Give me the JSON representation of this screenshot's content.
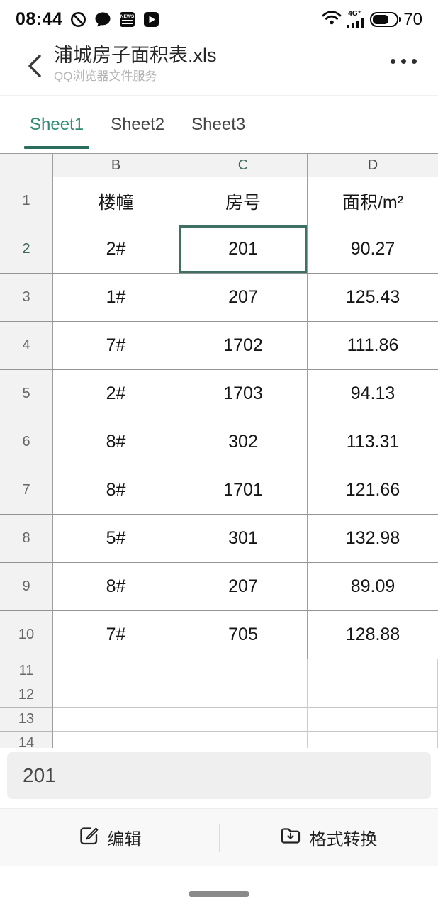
{
  "status_bar": {
    "time": "08:44",
    "left_icons": [
      "do-not-disturb-icon",
      "chat-bubble-icon",
      "news-app-icon",
      "video-app-icon"
    ],
    "network_label": "4G⁺",
    "battery_percent": "70"
  },
  "header": {
    "title": "浦城房子面积表.xls",
    "subtitle": "QQ浏览器文件服务"
  },
  "tabs": [
    {
      "label": "Sheet1",
      "active": true
    },
    {
      "label": "Sheet2",
      "active": false
    },
    {
      "label": "Sheet3",
      "active": false
    }
  ],
  "spreadsheet": {
    "columns": [
      "B",
      "C",
      "D"
    ],
    "selection": {
      "row": "2",
      "column": "C"
    },
    "rows": [
      {
        "num": "1",
        "cells": [
          "楼幢",
          "房号",
          "面积/m²"
        ]
      },
      {
        "num": "2",
        "cells": [
          "2#",
          "201",
          "90.27"
        ]
      },
      {
        "num": "3",
        "cells": [
          "1#",
          "207",
          "125.43"
        ]
      },
      {
        "num": "4",
        "cells": [
          "7#",
          "1702",
          "111.86"
        ]
      },
      {
        "num": "5",
        "cells": [
          "2#",
          "1703",
          "94.13"
        ]
      },
      {
        "num": "6",
        "cells": [
          "8#",
          "302",
          "113.31"
        ]
      },
      {
        "num": "7",
        "cells": [
          "8#",
          "1701",
          "121.66"
        ]
      },
      {
        "num": "8",
        "cells": [
          "5#",
          "301",
          "132.98"
        ]
      },
      {
        "num": "9",
        "cells": [
          "8#",
          "207",
          "89.09"
        ]
      },
      {
        "num": "10",
        "cells": [
          "7#",
          "705",
          "128.88"
        ]
      },
      {
        "num": "11",
        "cells": [
          "",
          "",
          ""
        ]
      },
      {
        "num": "12",
        "cells": [
          "",
          "",
          ""
        ]
      },
      {
        "num": "13",
        "cells": [
          "",
          "",
          ""
        ]
      },
      {
        "num": "14",
        "cells": [
          "",
          "",
          ""
        ]
      }
    ]
  },
  "cell_value_bar": {
    "value": "201"
  },
  "toolbar": {
    "edit_label": "编辑",
    "convert_label": "格式转换"
  },
  "colors": {
    "accent_green": "#2f8b72",
    "selection_border": "#3e7164",
    "tab_underline": "#2c6e5d"
  }
}
